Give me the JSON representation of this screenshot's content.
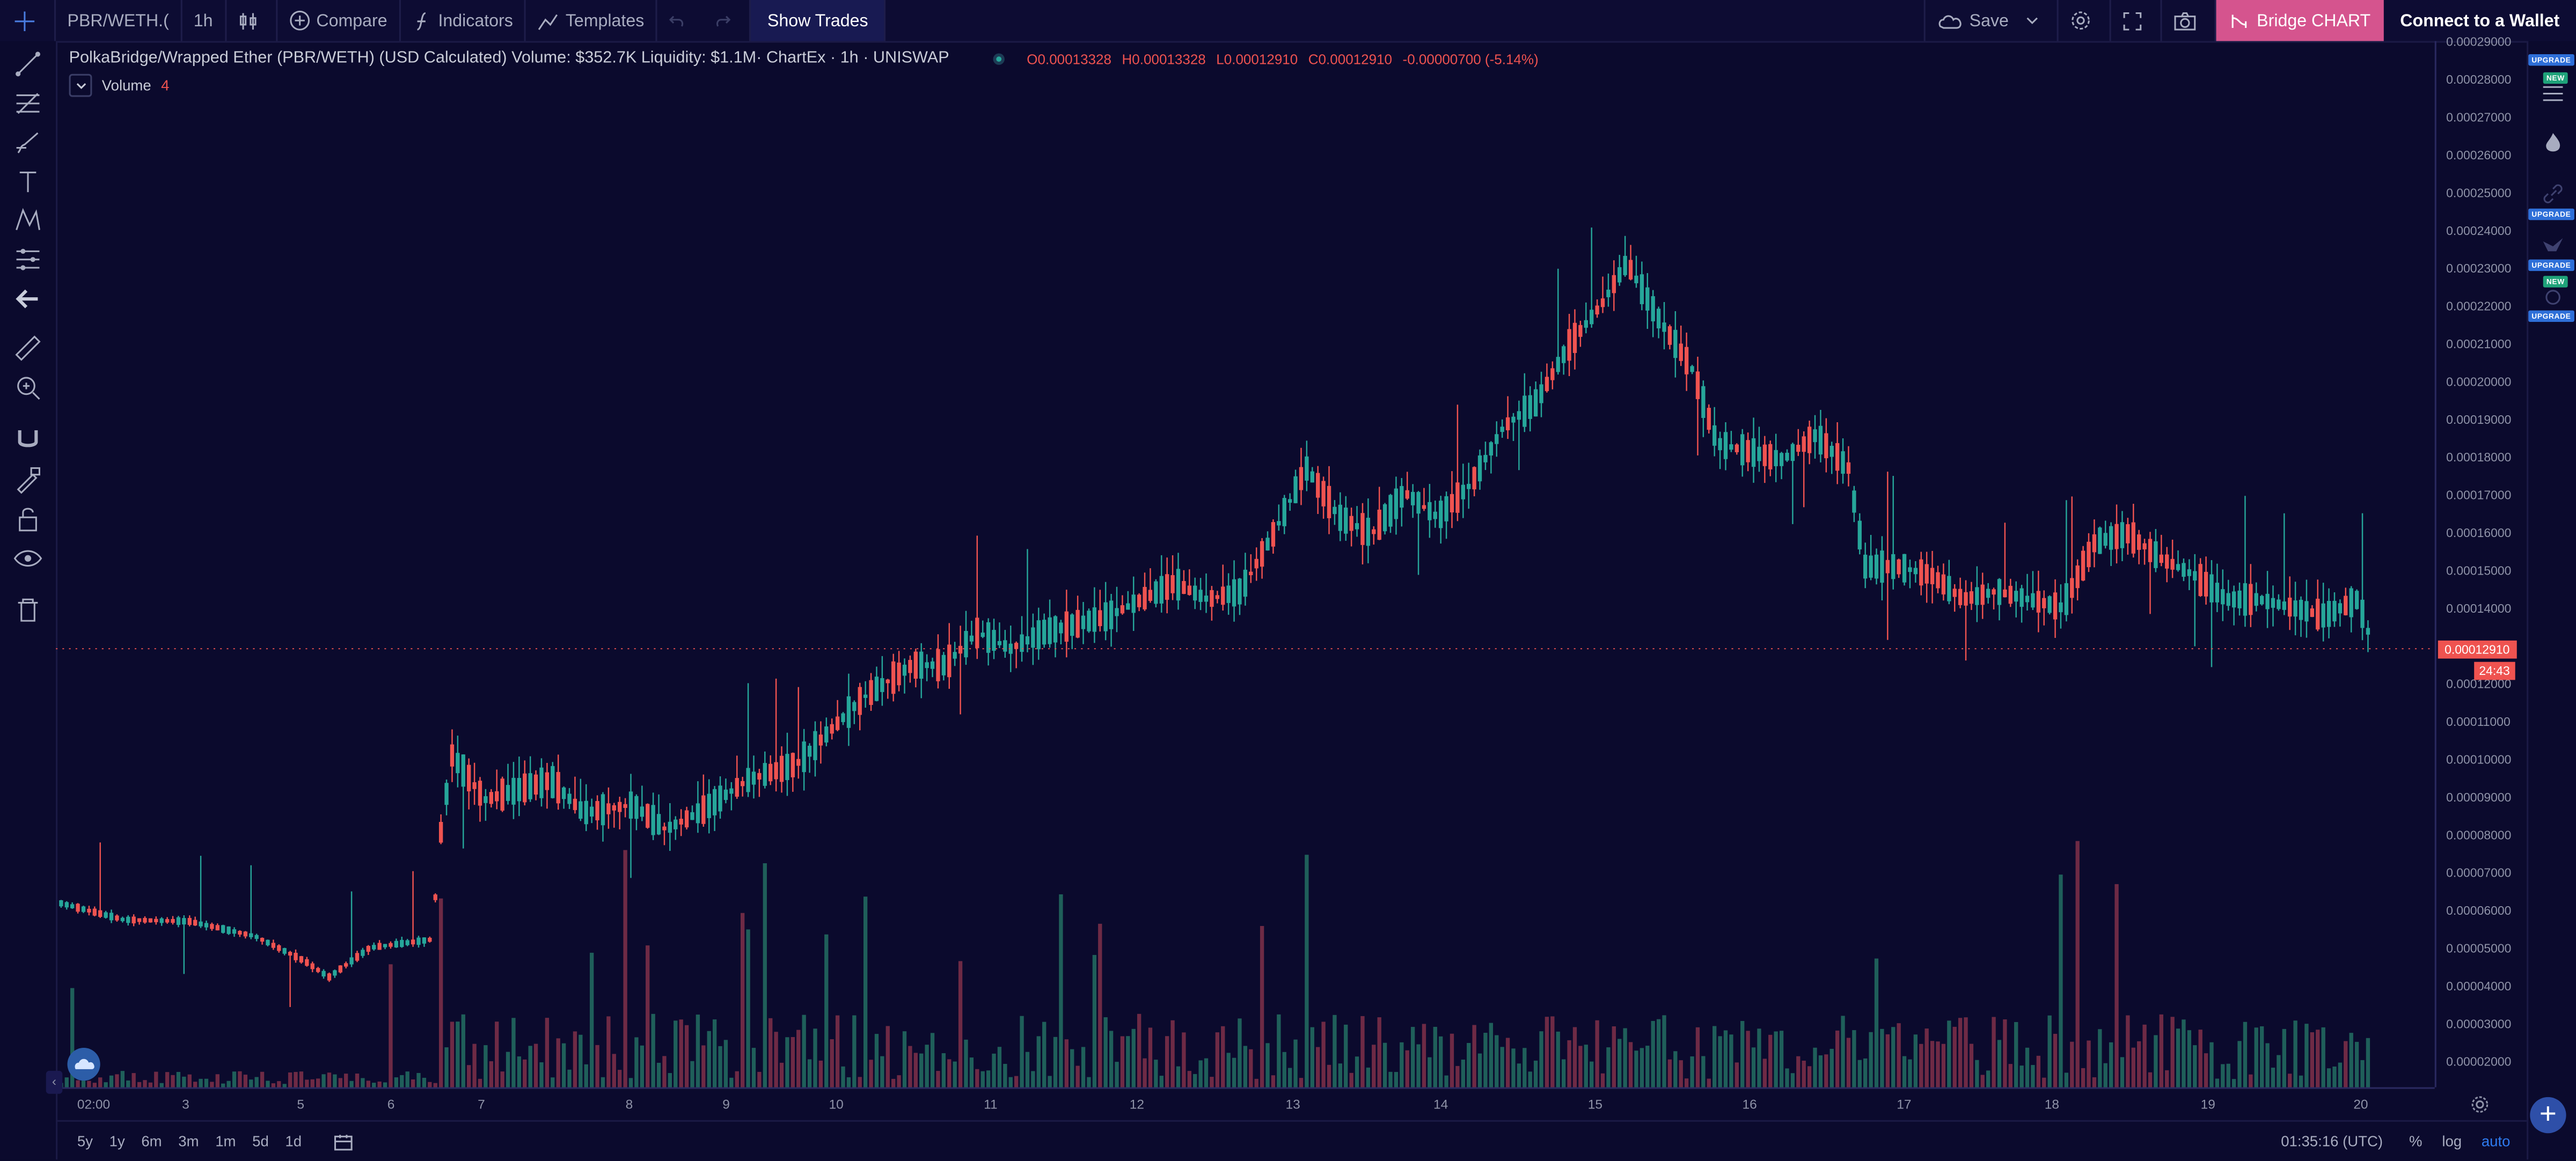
{
  "toolbar": {
    "symbol": "PBR/WETH.(",
    "interval": "1h",
    "compare_label": "Compare",
    "indicators_label": "Indicators",
    "templates_label": "Templates",
    "show_trades_label": "Show Trades",
    "save_label": "Save",
    "bridge_label": "Bridge CHART",
    "connect_label": "Connect to a Wallet"
  },
  "legend": {
    "title": "PolkaBridge/Wrapped Ether (PBR/WETH) (USD Calculated) Volume: $352.7K Liquidity: $1.1M· ChartEx · 1h · UNISWAP",
    "open": "O0.00013328",
    "high": "H0.00013328",
    "low": "L0.00012910",
    "close": "C0.00012910",
    "change": "-0.00000700 (-5.14%)",
    "volume_label": "Volume",
    "volume_value": "4"
  },
  "badges": {
    "upgrade": "UPGRADE",
    "new": "NEW"
  },
  "price_axis": {
    "labels": [
      "0.00029000",
      "0.00028000",
      "0.00027000",
      "0.00026000",
      "0.00025000",
      "0.00024000",
      "0.00023000",
      "0.00022000",
      "0.00021000",
      "0.00020000",
      "0.00019000",
      "0.00018000",
      "0.00017000",
      "0.00016000",
      "0.00015000",
      "0.00014000",
      "0.00013000",
      "0.00012000",
      "0.00011000",
      "0.00010000",
      "0.00009000",
      "0.00008000",
      "0.00007000",
      "0.00006000",
      "0.00005000",
      "0.00004000",
      "0.00003000",
      "0.00002000"
    ],
    "last_price": "0.00012910",
    "countdown": "24:43"
  },
  "time_axis": {
    "labels": [
      "02:00",
      "3",
      "5",
      "6",
      "7",
      "8",
      "9",
      "10",
      "11",
      "12",
      "13",
      "14",
      "15",
      "16",
      "17",
      "18",
      "19",
      "20"
    ]
  },
  "bottom_bar": {
    "ranges": [
      "5y",
      "1y",
      "6m",
      "3m",
      "1m",
      "5d",
      "1d"
    ],
    "clock": "01:35:16 (UTC)",
    "percent_label": "%",
    "log_label": "log",
    "auto_label": "auto"
  },
  "colors": {
    "background": "#0b0a2d",
    "up": "#26a69a",
    "down": "#ef5350",
    "accent": "#d5548e",
    "volume_up": "#1f5f5a",
    "volume_down": "#6e2a45"
  },
  "icons": {
    "left": [
      "crosshair-icon",
      "trend-line-icon",
      "fib-icon",
      "brush-icon",
      "text-icon",
      "pattern-icon",
      "prediction-icon",
      "back-arrow-icon",
      "ruler-icon",
      "zoom-icon",
      "magnet-icon",
      "lock-draw-icon",
      "lock-icon",
      "eye-icon",
      "trash-icon"
    ],
    "right": [
      "watchlist-icon",
      "fire-icon",
      "link-icon",
      "bird-icon",
      "gear-small-icon"
    ]
  }
}
